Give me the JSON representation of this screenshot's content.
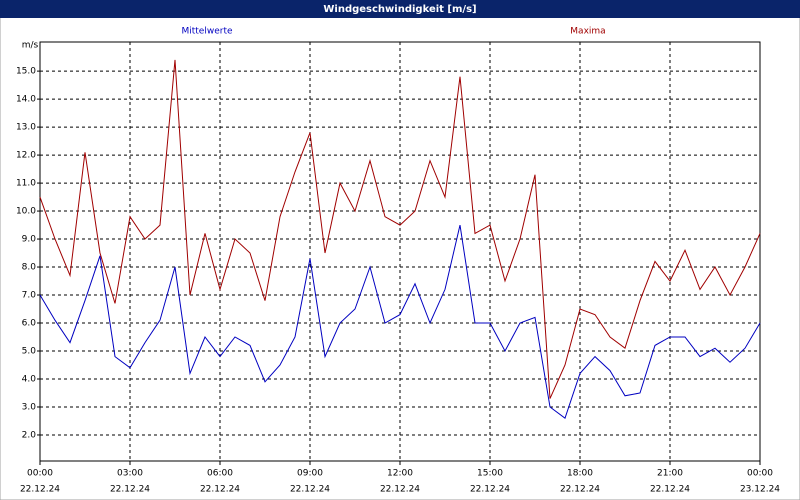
{
  "chart_data": {
    "type": "line",
    "title": "Windgeschwindigkeit [m/s]",
    "y_label": "m/s",
    "x": [
      0,
      0.5,
      1,
      1.5,
      2,
      2.5,
      3,
      3.5,
      4,
      4.5,
      5,
      5.5,
      6,
      6.5,
      7,
      7.5,
      8,
      8.5,
      9,
      9.5,
      10,
      10.5,
      11,
      11.5,
      12,
      12.5,
      13,
      13.5,
      14,
      14.5,
      15,
      15.5,
      16,
      16.5,
      17,
      17.5,
      18,
      18.5,
      19,
      19.5,
      20,
      20.5,
      21,
      21.5,
      22,
      22.5,
      23,
      23.5,
      24
    ],
    "series": [
      {
        "name": "Mittelwerte",
        "color": "#0000c0",
        "values": [
          7.0,
          6.1,
          5.3,
          6.8,
          8.4,
          4.8,
          4.4,
          5.3,
          6.1,
          8.0,
          4.2,
          5.5,
          4.8,
          5.5,
          5.2,
          3.9,
          4.5,
          5.5,
          8.3,
          4.8,
          6.0,
          6.5,
          8.0,
          6.0,
          6.3,
          7.4,
          6.0,
          7.2,
          9.5,
          6.0,
          6.0,
          5.0,
          6.0,
          6.2,
          3.0,
          2.6,
          4.2,
          4.8,
          4.3,
          3.4,
          3.5,
          5.2,
          5.5,
          5.5,
          4.8,
          5.1,
          4.6,
          5.1,
          6.0
        ]
      },
      {
        "name": "Maxima",
        "color": "#a00000",
        "values": [
          10.5,
          9.0,
          7.7,
          12.1,
          8.5,
          6.7,
          9.8,
          9.0,
          9.5,
          15.4,
          7.0,
          9.2,
          7.2,
          9.0,
          8.5,
          6.8,
          9.8,
          11.4,
          12.8,
          8.5,
          11.0,
          10.0,
          11.8,
          9.8,
          9.5,
          10.0,
          11.8,
          10.5,
          14.8,
          9.2,
          9.5,
          7.5,
          9.0,
          11.3,
          3.3,
          4.5,
          6.5,
          6.3,
          5.5,
          5.1,
          6.8,
          8.2,
          7.5,
          8.6,
          7.2,
          8.0,
          7.0,
          8.0,
          9.2
        ]
      }
    ],
    "xlim": [
      0,
      24
    ],
    "xticks": [
      {
        "value": 0,
        "label": "00:00",
        "date": "22.12.24"
      },
      {
        "value": 3,
        "label": "03:00",
        "date": "22.12.24"
      },
      {
        "value": 6,
        "label": "06:00",
        "date": "22.12.24"
      },
      {
        "value": 9,
        "label": "09:00",
        "date": "22.12.24"
      },
      {
        "value": 12,
        "label": "12:00",
        "date": "22.12.24"
      },
      {
        "value": 15,
        "label": "15:00",
        "date": "22.12.24"
      },
      {
        "value": 18,
        "label": "18:00",
        "date": "22.12.24"
      },
      {
        "value": 21,
        "label": "21:00",
        "date": "22.12.24"
      },
      {
        "value": 24,
        "label": "00:00",
        "date": "23.12.24"
      }
    ],
    "ylim": [
      1.07,
      16.04
    ],
    "yticks": [
      {
        "value": 2,
        "label": "2.0"
      },
      {
        "value": 3,
        "label": "3.0"
      },
      {
        "value": 4,
        "label": "4.0"
      },
      {
        "value": 5,
        "label": "5.0"
      },
      {
        "value": 6,
        "label": "6.0"
      },
      {
        "value": 7,
        "label": "7.0"
      },
      {
        "value": 8,
        "label": "8.0"
      },
      {
        "value": 9,
        "label": "9.0"
      },
      {
        "value": 10,
        "label": "10.0"
      },
      {
        "value": 11,
        "label": "11.0"
      },
      {
        "value": 12,
        "label": "12.0"
      },
      {
        "value": 13,
        "label": "13.0"
      },
      {
        "value": 14,
        "label": "14.0"
      },
      {
        "value": 15,
        "label": "15.0"
      }
    ],
    "grid": true
  }
}
